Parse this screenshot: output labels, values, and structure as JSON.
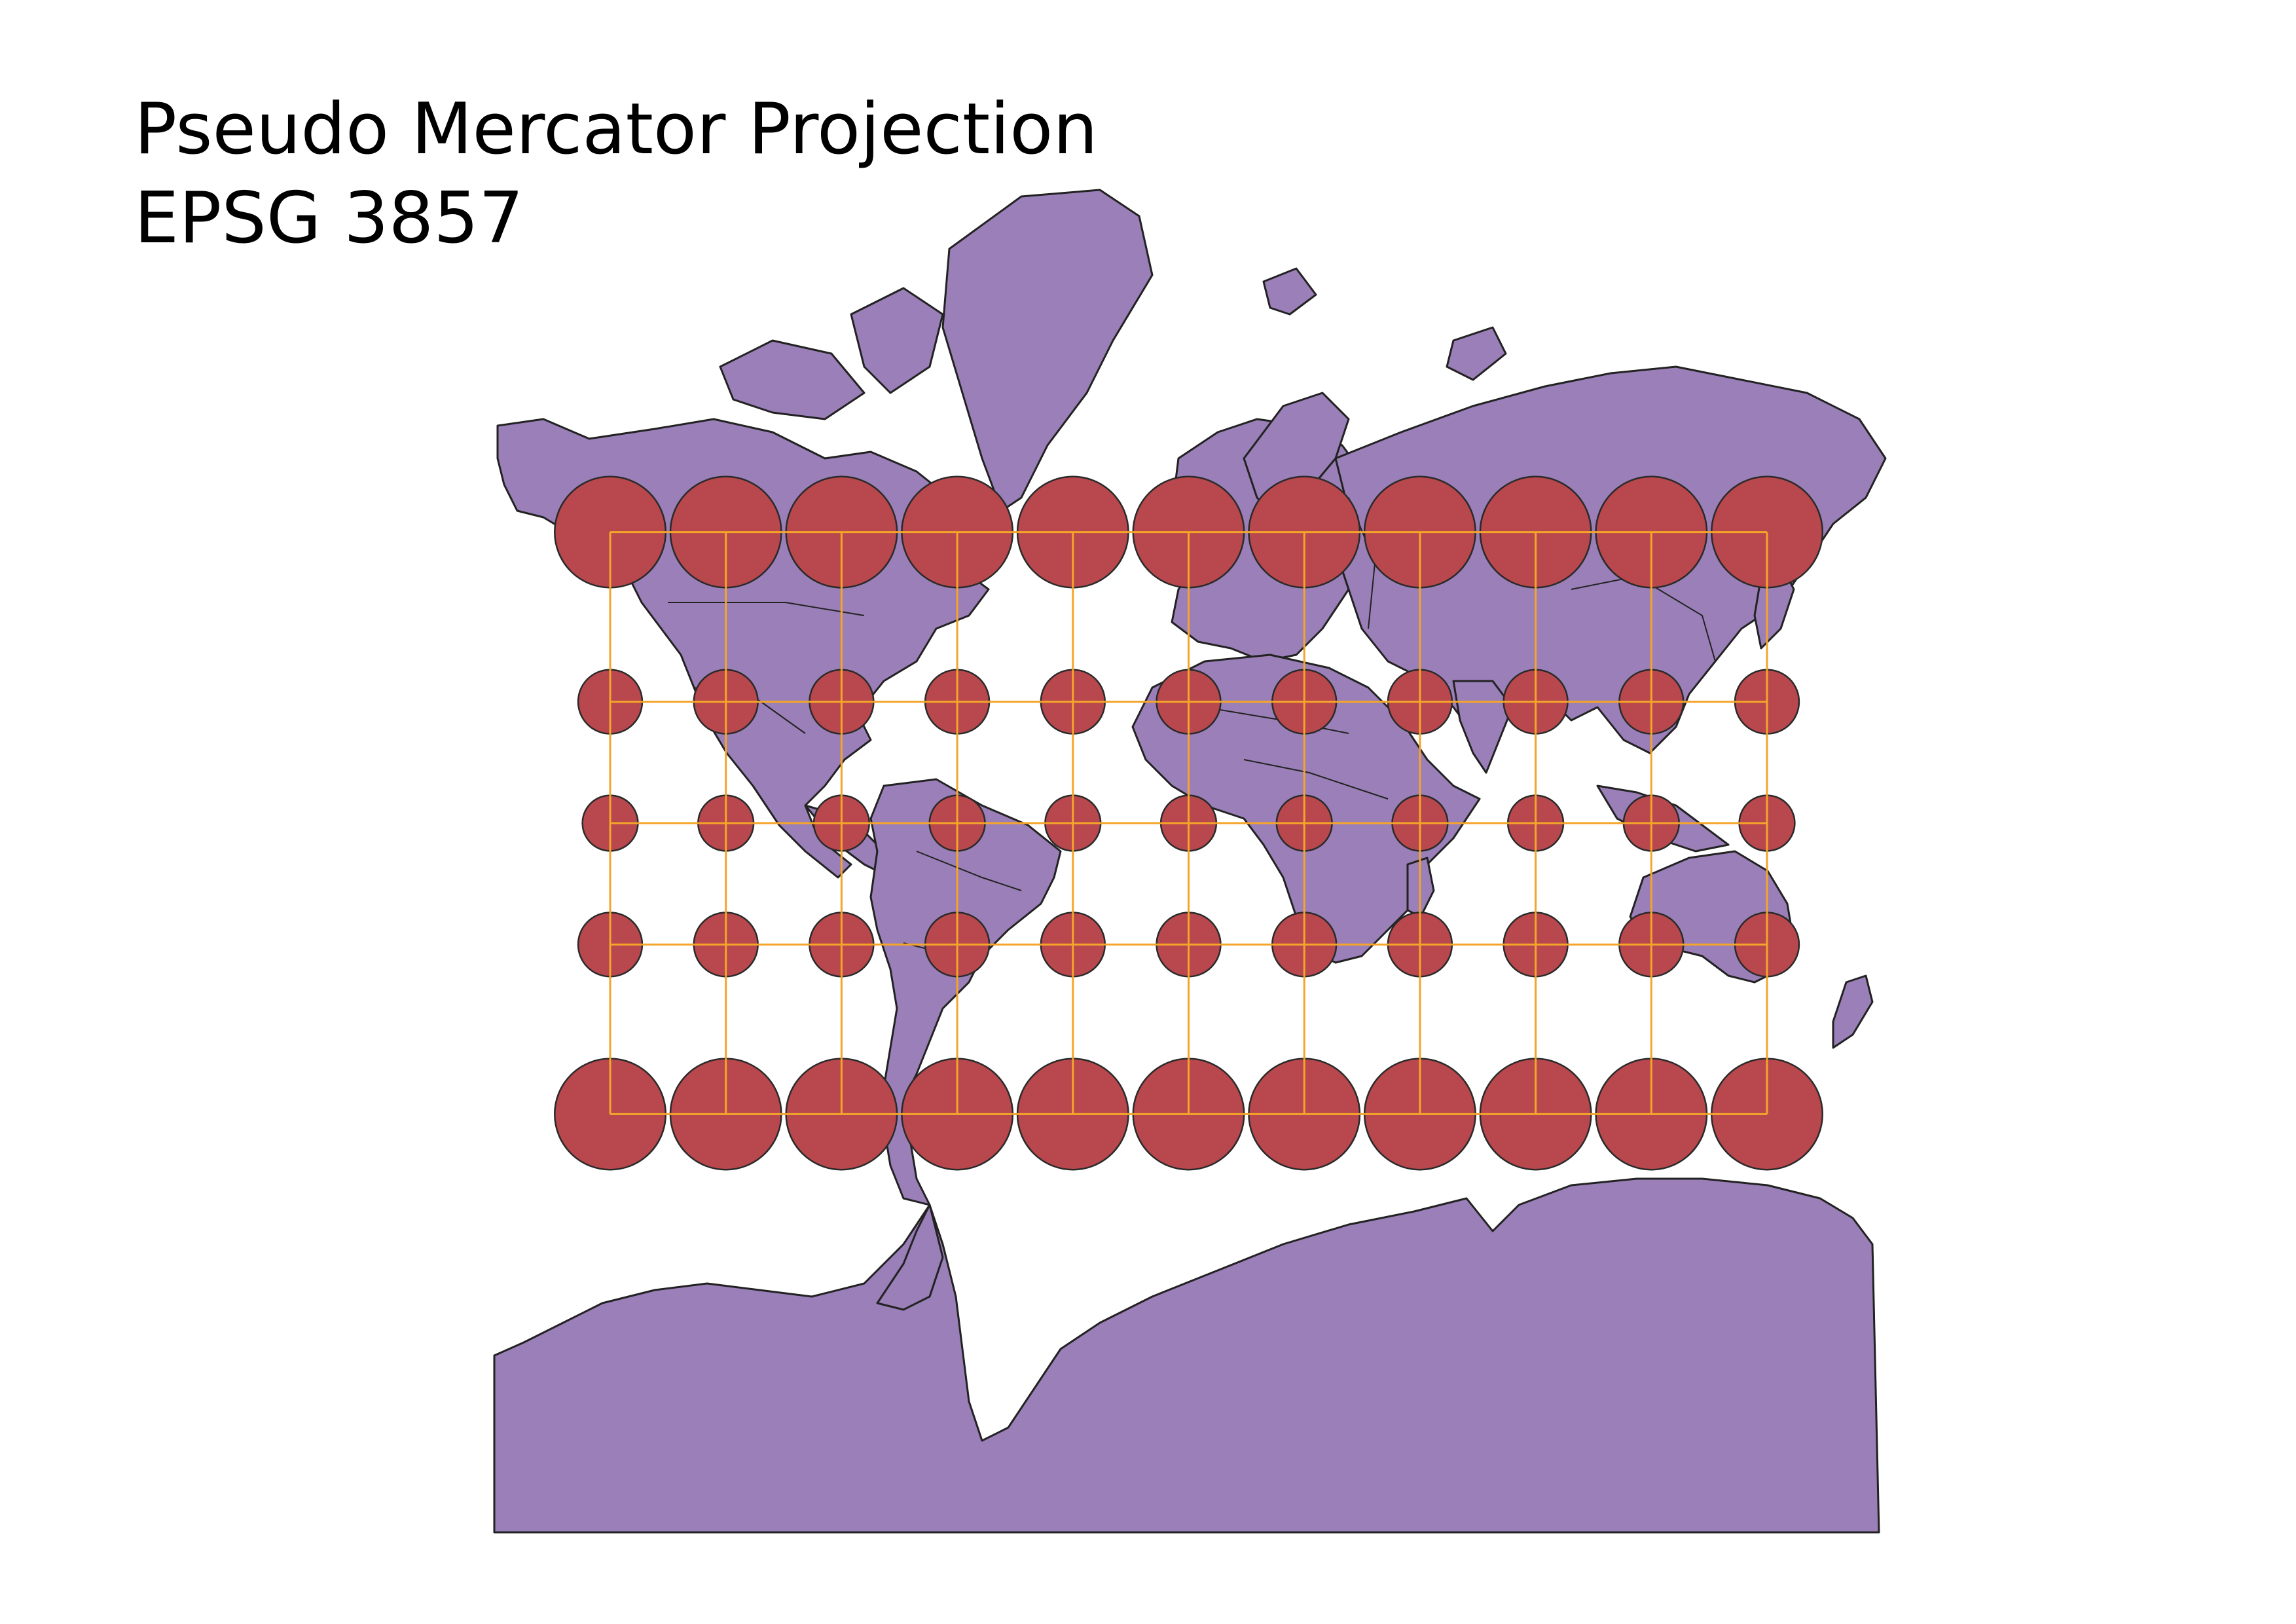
{
  "title": {
    "line1": "Pseudo Mercator Projection",
    "line2": "EPSG 3857"
  },
  "colors": {
    "land": "#9a7fb8",
    "coastline": "#222222",
    "indicatrix": "#b8484d",
    "graticule": "#f4a52a",
    "background": "#ffffff"
  },
  "map": {
    "projection": "Web Mercator",
    "graticule_longitudes": [
      -150,
      -120,
      -90,
      -60,
      -30,
      0,
      30,
      60,
      90,
      120,
      150
    ],
    "graticule_latitudes": [
      60,
      30,
      0,
      -30,
      -60
    ],
    "indicatrix_radius_km": 800
  }
}
